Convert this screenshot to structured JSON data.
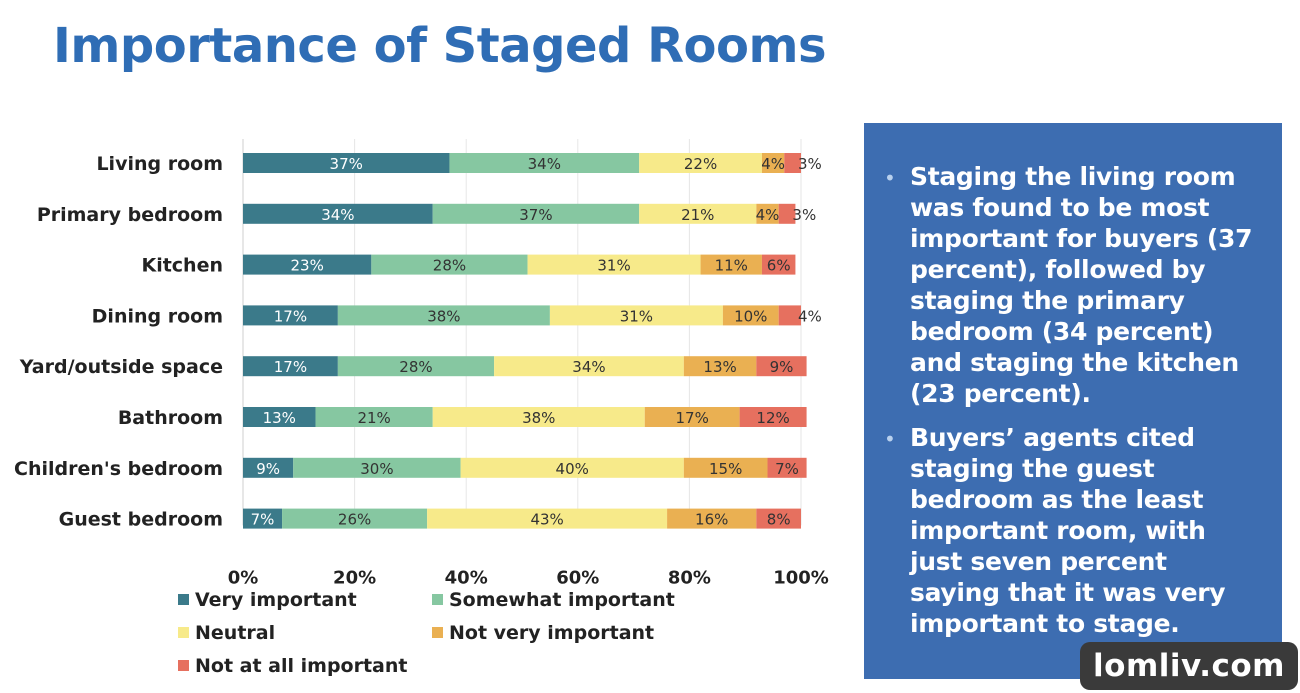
{
  "title": "Importance of Staged Rooms",
  "chart_data": {
    "type": "bar",
    "orientation": "horizontal",
    "stacked": true,
    "categories": [
      "Living room",
      "Primary bedroom",
      "Kitchen",
      "Dining room",
      "Yard/outside space",
      "Bathroom",
      "Children's bedroom",
      "Guest bedroom"
    ],
    "series": [
      {
        "name": "Very important",
        "color": "#3b7a8a",
        "values": [
          37,
          34,
          23,
          17,
          17,
          13,
          9,
          7
        ]
      },
      {
        "name": "Somewhat important",
        "color": "#86c7a1",
        "values": [
          34,
          37,
          28,
          38,
          28,
          21,
          30,
          26
        ]
      },
      {
        "name": "Neutral",
        "color": "#f7ea8a",
        "values": [
          22,
          21,
          31,
          31,
          34,
          38,
          40,
          43
        ]
      },
      {
        "name": "Not very important",
        "color": "#eab052",
        "values": [
          4,
          4,
          11,
          10,
          13,
          17,
          15,
          16
        ]
      },
      {
        "name": "Not at all important",
        "color": "#e6705f",
        "values": [
          3,
          3,
          6,
          4,
          9,
          12,
          7,
          8
        ]
      }
    ],
    "value_labels": [
      [
        "37%",
        "34%",
        "22%",
        "4%",
        "3%"
      ],
      [
        "34%",
        "37%",
        "21%",
        "4%",
        "3%"
      ],
      [
        "23%",
        "28%",
        "31%",
        "11%",
        "6%"
      ],
      [
        "17%",
        "38%",
        "31%",
        "10%",
        "4%"
      ],
      [
        "17%",
        "28%",
        "34%",
        "13%",
        "9%"
      ],
      [
        "13%",
        "21%",
        "38%",
        "17%",
        "12%"
      ],
      [
        "9%",
        "30%",
        "40%",
        "15%",
        "7%"
      ],
      [
        "7%",
        "26%",
        "43%",
        "16%",
        "8%"
      ]
    ],
    "x_ticks": [
      "0%",
      "20%",
      "40%",
      "60%",
      "80%",
      "100%"
    ],
    "xlim": [
      0,
      100
    ],
    "grid": true,
    "legend_position": "bottom"
  },
  "side_panel": {
    "bullets": [
      "Staging the living room was found to be most important for buyers (37 percent), followed by staging the primary bedroom (34 percent) and staging the kitchen (23 percent).",
      "Buyers’ agents cited staging the guest bedroom as the least important room, with just seven percent saying that it was very important to stage."
    ]
  },
  "watermark": "lomliv.com"
}
